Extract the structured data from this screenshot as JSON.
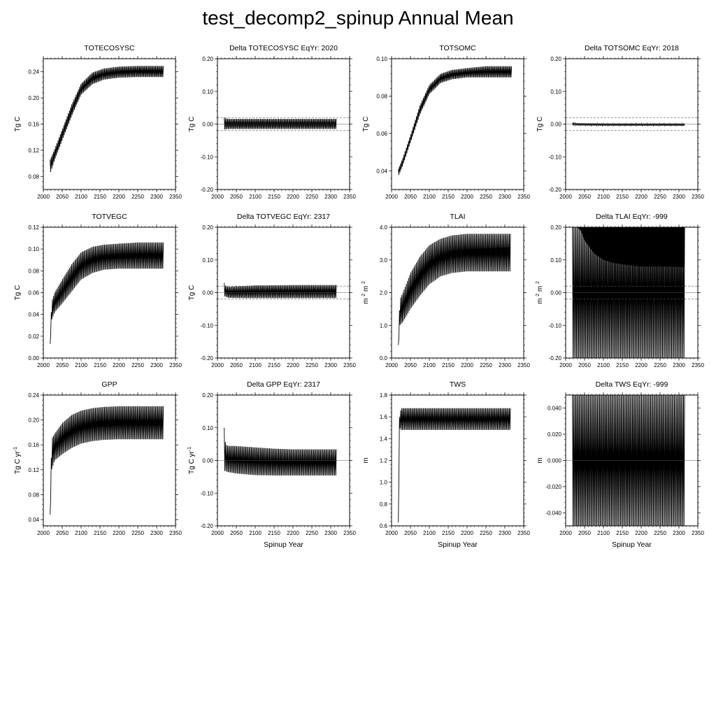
{
  "figure_title": "test_decomp2_spinup Annual Mean",
  "colors": {
    "line": "#000000",
    "background": "#ffffff",
    "reference_line": "#555555"
  },
  "chart_data": [
    {
      "id": "totecosysc",
      "type": "line",
      "title": "TOTECOSYSC",
      "ylabel": "Tg C",
      "ylabel_sup": "",
      "xlabel": "",
      "xlim": [
        2000,
        2350
      ],
      "xticks": [
        2000,
        2050,
        2100,
        2150,
        2200,
        2250,
        2300,
        2350
      ],
      "xtick_labels": [
        "2000",
        "2050",
        "2100",
        "2150",
        "2200",
        "2250",
        "2300",
        "2350"
      ],
      "ylim": [
        0.06,
        0.26
      ],
      "yticks": [
        0.08,
        0.12,
        0.16,
        0.2,
        0.24
      ],
      "ytick_labels": [
        "0.08",
        "0.12",
        "0.16",
        "0.20",
        "0.24"
      ],
      "x_range": [
        2018,
        2319
      ],
      "envelope": {
        "x": [
          2018,
          2030,
          2050,
          2075,
          2100,
          2130,
          2160,
          2200,
          2250,
          2319
        ],
        "low": [
          0.084,
          0.105,
          0.135,
          0.172,
          0.205,
          0.221,
          0.228,
          0.231,
          0.232,
          0.232
        ],
        "high": [
          0.106,
          0.122,
          0.152,
          0.19,
          0.222,
          0.239,
          0.245,
          0.248,
          0.249,
          0.249
        ]
      },
      "hlines": []
    },
    {
      "id": "delta-totecosysc",
      "type": "line",
      "title": "Delta TOTECOSYSC EqYr: 2020",
      "ylabel": "Tg C",
      "ylabel_sup": "",
      "xlabel": "",
      "xlim": [
        2000,
        2350
      ],
      "xticks": [
        2000,
        2050,
        2100,
        2150,
        2200,
        2250,
        2300,
        2350
      ],
      "xtick_labels": [
        "2000",
        "2050",
        "2100",
        "2150",
        "2200",
        "2250",
        "2300",
        "2350"
      ],
      "ylim": [
        -0.2,
        0.2
      ],
      "yticks": [
        -0.2,
        -0.1,
        0.0,
        0.1,
        0.2
      ],
      "ytick_labels": [
        "-0.20",
        "-0.10",
        "0.00",
        "0.10",
        "0.20"
      ],
      "x_range": [
        2018,
        2315
      ],
      "envelope": {
        "x": [
          2018,
          2020,
          2030,
          2100,
          2200,
          2315
        ],
        "low": [
          -0.02,
          -0.016,
          -0.015,
          -0.015,
          -0.015,
          -0.015
        ],
        "high": [
          0.02,
          0.018,
          0.016,
          0.016,
          0.016,
          0.016
        ]
      },
      "hlines": [
        0.02,
        -0.02
      ]
    },
    {
      "id": "totsomc",
      "type": "line",
      "title": "TOTSOMC",
      "ylabel": "Tg C",
      "ylabel_sup": "",
      "xlabel": "",
      "xlim": [
        2000,
        2350
      ],
      "xticks": [
        2000,
        2050,
        2100,
        2150,
        2200,
        2250,
        2300,
        2350
      ],
      "xtick_labels": [
        "2000",
        "2050",
        "2100",
        "2150",
        "2200",
        "2250",
        "2300",
        "2350"
      ],
      "ylim": [
        0.03,
        0.1
      ],
      "yticks": [
        0.04,
        0.06,
        0.08,
        0.1
      ],
      "ytick_labels": [
        "0.04",
        "0.06",
        "0.08",
        "0.10"
      ],
      "x_range": [
        2018,
        2319
      ],
      "envelope": {
        "x": [
          2018,
          2030,
          2050,
          2075,
          2100,
          2130,
          2160,
          2200,
          2250,
          2319
        ],
        "low": [
          0.037,
          0.043,
          0.055,
          0.07,
          0.081,
          0.087,
          0.089,
          0.09,
          0.09,
          0.09
        ],
        "high": [
          0.041,
          0.047,
          0.059,
          0.075,
          0.086,
          0.092,
          0.094,
          0.095,
          0.096,
          0.096
        ]
      },
      "hlines": []
    },
    {
      "id": "delta-totsomc",
      "type": "line",
      "title": "Delta TOTSOMC EqYr: 2018",
      "ylabel": "Tg C",
      "ylabel_sup": "",
      "xlabel": "",
      "xlim": [
        2000,
        2350
      ],
      "xticks": [
        2000,
        2050,
        2100,
        2150,
        2200,
        2250,
        2300,
        2350
      ],
      "xtick_labels": [
        "2000",
        "2050",
        "2100",
        "2150",
        "2200",
        "2250",
        "2300",
        "2350"
      ],
      "ylim": [
        -0.2,
        0.2
      ],
      "yticks": [
        -0.2,
        -0.1,
        0.0,
        0.1,
        0.2
      ],
      "ytick_labels": [
        "-0.20",
        "-0.10",
        "0.00",
        "0.10",
        "0.20"
      ],
      "x_range": [
        2018,
        2315
      ],
      "envelope": {
        "x": [
          2018,
          2030,
          2100,
          2200,
          2315
        ],
        "low": [
          -0.002,
          -0.004,
          -0.005,
          -0.005,
          -0.005
        ],
        "high": [
          0.004,
          0.003,
          0.002,
          0.002,
          0.002
        ]
      },
      "hlines": [
        0.02,
        -0.02
      ]
    },
    {
      "id": "totvegc",
      "type": "line",
      "title": "TOTVEGC",
      "ylabel": "Tg C",
      "ylabel_sup": "",
      "xlabel": "",
      "xlim": [
        2000,
        2350
      ],
      "xticks": [
        2000,
        2050,
        2100,
        2150,
        2200,
        2250,
        2300,
        2350
      ],
      "xtick_labels": [
        "2000",
        "2050",
        "2100",
        "2150",
        "2200",
        "2250",
        "2300",
        "2350"
      ],
      "ylim": [
        0.0,
        0.12
      ],
      "yticks": [
        0.0,
        0.02,
        0.04,
        0.06,
        0.08,
        0.1,
        0.12
      ],
      "ytick_labels": [
        "0.00",
        "0.02",
        "0.04",
        "0.06",
        "0.08",
        "0.10",
        "0.12"
      ],
      "x_range": [
        2018,
        2319
      ],
      "envelope": {
        "x": [
          2018,
          2022,
          2030,
          2050,
          2075,
          2100,
          2130,
          2160,
          2200,
          2250,
          2319
        ],
        "low": [
          0.013,
          0.035,
          0.042,
          0.05,
          0.061,
          0.072,
          0.078,
          0.081,
          0.082,
          0.082,
          0.082
        ],
        "high": [
          0.013,
          0.052,
          0.06,
          0.072,
          0.086,
          0.097,
          0.102,
          0.104,
          0.105,
          0.106,
          0.106
        ]
      },
      "hlines": []
    },
    {
      "id": "delta-totvegc",
      "type": "line",
      "title": "Delta TOTVEGC EqYr: 2317",
      "ylabel": "Tg C",
      "ylabel_sup": "",
      "xlabel": "",
      "xlim": [
        2000,
        2350
      ],
      "xticks": [
        2000,
        2050,
        2100,
        2150,
        2200,
        2250,
        2300,
        2350
      ],
      "xtick_labels": [
        "2000",
        "2050",
        "2100",
        "2150",
        "2200",
        "2250",
        "2300",
        "2350"
      ],
      "ylim": [
        -0.2,
        0.2
      ],
      "yticks": [
        -0.2,
        -0.1,
        0.0,
        0.1,
        0.2
      ],
      "ytick_labels": [
        "-0.20",
        "-0.10",
        "0.00",
        "0.10",
        "0.20"
      ],
      "x_range": [
        2018,
        2315
      ],
      "envelope": {
        "x": [
          2018,
          2020,
          2030,
          2100,
          2200,
          2315
        ],
        "low": [
          -0.01,
          -0.012,
          -0.016,
          -0.017,
          -0.017,
          -0.017
        ],
        "high": [
          0.03,
          0.022,
          0.018,
          0.022,
          0.023,
          0.023
        ]
      },
      "hlines": [
        0.02,
        -0.02
      ]
    },
    {
      "id": "tlai",
      "type": "line",
      "title": "TLAI",
      "ylabel": "m  m",
      "ylabel_sup": "2",
      "xlabel": "",
      "xlim": [
        2000,
        2350
      ],
      "xticks": [
        2000,
        2050,
        2100,
        2150,
        2200,
        2250,
        2300,
        2350
      ],
      "xtick_labels": [
        "2000",
        "2050",
        "2100",
        "2150",
        "2200",
        "2250",
        "2300",
        "2350"
      ],
      "ylim": [
        0.0,
        4.0
      ],
      "yticks": [
        0.0,
        1.0,
        2.0,
        3.0,
        4.0
      ],
      "ytick_labels": [
        "0.0",
        "1.0",
        "2.0",
        "3.0",
        "4.0"
      ],
      "x_range": [
        2018,
        2315
      ],
      "envelope": {
        "x": [
          2018,
          2022,
          2030,
          2050,
          2075,
          2100,
          2130,
          2160,
          2200,
          2250,
          2315
        ],
        "low": [
          0.4,
          1.0,
          1.1,
          1.5,
          1.9,
          2.25,
          2.5,
          2.6,
          2.65,
          2.65,
          2.65
        ],
        "high": [
          0.4,
          1.8,
          2.0,
          2.6,
          3.1,
          3.45,
          3.65,
          3.75,
          3.8,
          3.8,
          3.8
        ]
      },
      "mean_line": {
        "x": [
          2022,
          2050,
          2075,
          2100,
          2130,
          2160,
          2200,
          2250,
          2315
        ],
        "y": [
          1.4,
          2.1,
          2.55,
          2.9,
          3.1,
          3.22,
          3.3,
          3.33,
          3.35
        ]
      },
      "hlines": []
    },
    {
      "id": "delta-tlai",
      "type": "line",
      "title": "Delta TLAI EqYr: -999",
      "ylabel": "m  m",
      "ylabel_sup": "2",
      "xlabel": "",
      "xlim": [
        2000,
        2350
      ],
      "xticks": [
        2000,
        2050,
        2100,
        2150,
        2200,
        2250,
        2300,
        2350
      ],
      "xtick_labels": [
        "2000",
        "2050",
        "2100",
        "2150",
        "2200",
        "2250",
        "2300",
        "2350"
      ],
      "ylim": [
        -0.2,
        0.2
      ],
      "yticks": [
        -0.2,
        -0.1,
        0.0,
        0.1,
        0.2
      ],
      "ytick_labels": [
        "-0.20",
        "-0.10",
        "0.00",
        "0.10",
        "0.20"
      ],
      "x_range": [
        2018,
        2315
      ],
      "envelope": {
        "x": [
          2018,
          2315
        ],
        "low": [
          -0.2,
          -0.2
        ],
        "high": [
          0.2,
          0.2
        ]
      },
      "upper_fill": {
        "x": [
          2030,
          2040,
          2050,
          2075,
          2100,
          2130,
          2160,
          2200,
          2250,
          2315
        ],
        "y": [
          0.2,
          0.19,
          0.16,
          0.12,
          0.1,
          0.09,
          0.085,
          0.08,
          0.08,
          0.078
        ]
      },
      "hlines": [
        0.02,
        -0.02
      ]
    },
    {
      "id": "gpp",
      "type": "line",
      "title": "GPP",
      "ylabel": "Tg C yr",
      "ylabel_sup": "-1",
      "xlabel": "",
      "xlim": [
        2000,
        2350
      ],
      "xticks": [
        2000,
        2050,
        2100,
        2150,
        2200,
        2250,
        2300,
        2350
      ],
      "xtick_labels": [
        "2000",
        "2050",
        "2100",
        "2150",
        "2200",
        "2250",
        "2300",
        "2350"
      ],
      "ylim": [
        0.03,
        0.24
      ],
      "yticks": [
        0.04,
        0.08,
        0.12,
        0.16,
        0.2,
        0.24
      ],
      "ytick_labels": [
        "0.04",
        "0.08",
        "0.12",
        "0.16",
        "0.20",
        "0.24"
      ],
      "x_range": [
        2018,
        2319
      ],
      "envelope": {
        "x": [
          2018,
          2022,
          2030,
          2050,
          2075,
          2100,
          2130,
          2160,
          2200,
          2250,
          2319
        ],
        "low": [
          0.048,
          0.12,
          0.135,
          0.145,
          0.155,
          0.162,
          0.166,
          0.168,
          0.169,
          0.169,
          0.169
        ],
        "high": [
          0.048,
          0.17,
          0.178,
          0.195,
          0.208,
          0.215,
          0.219,
          0.221,
          0.222,
          0.222,
          0.222
        ]
      },
      "hlines": []
    },
    {
      "id": "delta-gpp",
      "type": "line",
      "title": "Delta GPP EqYr: 2317",
      "ylabel": "Tg C yr",
      "ylabel_sup": "-1",
      "xlabel": "Spinup Year",
      "xlim": [
        2000,
        2350
      ],
      "xticks": [
        2000,
        2050,
        2100,
        2150,
        2200,
        2250,
        2300,
        2350
      ],
      "xtick_labels": [
        "2000",
        "2050",
        "2100",
        "2150",
        "2200",
        "2250",
        "2300",
        "2350"
      ],
      "ylim": [
        -0.2,
        0.2
      ],
      "yticks": [
        -0.2,
        -0.1,
        0.0,
        0.1,
        0.2
      ],
      "ytick_labels": [
        "-0.20",
        "-0.10",
        "0.00",
        "0.10",
        "0.20"
      ],
      "x_range": [
        2018,
        2315
      ],
      "envelope": {
        "x": [
          2018,
          2020,
          2025,
          2050,
          2100,
          2150,
          2200,
          2250,
          2315
        ],
        "low": [
          -0.04,
          -0.03,
          -0.035,
          -0.04,
          -0.045,
          -0.046,
          -0.046,
          -0.046,
          -0.046
        ],
        "high": [
          0.1,
          0.06,
          0.045,
          0.044,
          0.04,
          0.036,
          0.034,
          0.034,
          0.034
        ]
      },
      "hlines": []
    },
    {
      "id": "tws",
      "type": "line",
      "title": "TWS",
      "ylabel": "m",
      "ylabel_sup": "",
      "xlabel": "Spinup Year",
      "xlim": [
        2000,
        2350
      ],
      "xticks": [
        2000,
        2050,
        2100,
        2150,
        2200,
        2250,
        2300,
        2350
      ],
      "xtick_labels": [
        "2000",
        "2050",
        "2100",
        "2150",
        "2200",
        "2250",
        "2300",
        "2350"
      ],
      "ylim": [
        0.6,
        1.8
      ],
      "yticks": [
        0.6,
        0.8,
        1.0,
        1.2,
        1.4,
        1.6,
        1.8
      ],
      "ytick_labels": [
        "0.6",
        "0.8",
        "1.0",
        "1.2",
        "1.4",
        "1.6",
        "1.8"
      ],
      "x_range": [
        2018,
        2315
      ],
      "envelope": {
        "x": [
          2018,
          2021,
          2025,
          2315
        ],
        "low": [
          0.63,
          1.5,
          1.48,
          1.48
        ],
        "high": [
          0.63,
          1.6,
          1.68,
          1.68
        ]
      },
      "hlines": []
    },
    {
      "id": "delta-tws",
      "type": "line",
      "title": "Delta TWS EqYr: -999",
      "ylabel": "m",
      "ylabel_sup": "",
      "xlabel": "Spinup Year",
      "xlim": [
        2000,
        2350
      ],
      "xticks": [
        2000,
        2050,
        2100,
        2150,
        2200,
        2250,
        2300,
        2350
      ],
      "xtick_labels": [
        "2000",
        "2050",
        "2100",
        "2150",
        "2200",
        "2250",
        "2300",
        "2350"
      ],
      "ylim": [
        -0.05,
        0.05
      ],
      "yticks": [
        -0.04,
        -0.02,
        0.0,
        0.02,
        0.04
      ],
      "ytick_labels": [
        "-0.040",
        "-0.020",
        "0.000",
        "0.020",
        "0.040"
      ],
      "x_range": [
        2018,
        2315
      ],
      "envelope": {
        "x": [
          2018,
          2315
        ],
        "low": [
          -0.05,
          -0.05
        ],
        "high": [
          0.05,
          0.05
        ]
      },
      "hlines": []
    }
  ]
}
